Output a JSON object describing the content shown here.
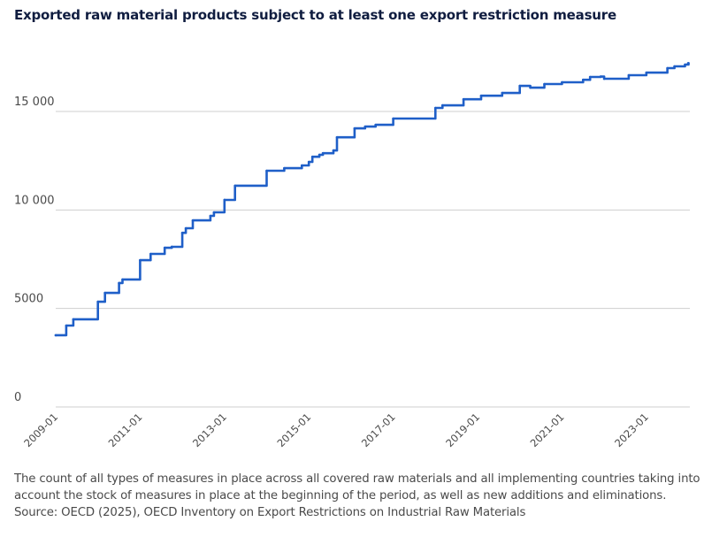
{
  "chart_data": {
    "type": "line",
    "title": "Exported raw material products subject to at least one export restriction measure",
    "xlabel": "",
    "ylabel": "",
    "ylim": [
      0,
      18000
    ],
    "yticks": [
      0,
      5000,
      10000,
      15000
    ],
    "ytick_labels": [
      "0",
      "5000",
      "10 000",
      "15 000"
    ],
    "xticks": [
      "2009-01",
      "2011-01",
      "2013-01",
      "2015-01",
      "2017-01",
      "2019-01",
      "2021-01",
      "2023-01"
    ],
    "x_start": "2009-01",
    "x_end": "2024-01",
    "x_frequency": "monthly",
    "grid": true,
    "legend": "none",
    "series": [
      {
        "name": "Exported raw material products subject to at least one export restriction measure",
        "color": "#1f5fc8",
        "steps": [
          {
            "month_index": 0,
            "value": 3640
          },
          {
            "month_index": 3,
            "value": 4130
          },
          {
            "month_index": 5,
            "value": 4450
          },
          {
            "month_index": 12,
            "value": 5340
          },
          {
            "month_index": 14,
            "value": 5790
          },
          {
            "month_index": 18,
            "value": 6290
          },
          {
            "month_index": 19,
            "value": 6470
          },
          {
            "month_index": 24,
            "value": 7450
          },
          {
            "month_index": 27,
            "value": 7770
          },
          {
            "month_index": 31,
            "value": 8080
          },
          {
            "month_index": 33,
            "value": 8130
          },
          {
            "month_index": 36,
            "value": 8840
          },
          {
            "month_index": 37,
            "value": 9070
          },
          {
            "month_index": 39,
            "value": 9470
          },
          {
            "month_index": 44,
            "value": 9700
          },
          {
            "month_index": 45,
            "value": 9880
          },
          {
            "month_index": 48,
            "value": 10510
          },
          {
            "month_index": 51,
            "value": 11230
          },
          {
            "month_index": 60,
            "value": 11990
          },
          {
            "month_index": 65,
            "value": 12120
          },
          {
            "month_index": 70,
            "value": 12260
          },
          {
            "month_index": 72,
            "value": 12440
          },
          {
            "month_index": 73,
            "value": 12700
          },
          {
            "month_index": 75,
            "value": 12800
          },
          {
            "month_index": 76,
            "value": 12880
          },
          {
            "month_index": 79,
            "value": 13020
          },
          {
            "month_index": 80,
            "value": 13690
          },
          {
            "month_index": 85,
            "value": 14140
          },
          {
            "month_index": 88,
            "value": 14230
          },
          {
            "month_index": 91,
            "value": 14320
          },
          {
            "month_index": 96,
            "value": 14640
          },
          {
            "month_index": 108,
            "value": 15180
          },
          {
            "month_index": 110,
            "value": 15310
          },
          {
            "month_index": 116,
            "value": 15620
          },
          {
            "month_index": 121,
            "value": 15800
          },
          {
            "month_index": 127,
            "value": 15940
          },
          {
            "month_index": 132,
            "value": 16300
          },
          {
            "month_index": 135,
            "value": 16210
          },
          {
            "month_index": 139,
            "value": 16390
          },
          {
            "month_index": 144,
            "value": 16480
          },
          {
            "month_index": 150,
            "value": 16610
          },
          {
            "month_index": 152,
            "value": 16750
          },
          {
            "month_index": 155,
            "value": 16770
          },
          {
            "month_index": 156,
            "value": 16660
          },
          {
            "month_index": 163,
            "value": 16840
          },
          {
            "month_index": 168,
            "value": 16970
          },
          {
            "month_index": 174,
            "value": 17200
          },
          {
            "month_index": 176,
            "value": 17290
          },
          {
            "month_index": 179,
            "value": 17380
          },
          {
            "month_index": 180,
            "value": 17450
          }
        ]
      }
    ]
  },
  "caption": {
    "note_line1": "The count of all types of measures in place across all covered raw materials and all implementing countries taking into",
    "note_line2": "account the stock of measures in place at the beginning of the period, as well as new additions and eliminations.",
    "source": "Source: OECD (2025), OECD Inventory on Export Restrictions on Industrial Raw Materials"
  }
}
